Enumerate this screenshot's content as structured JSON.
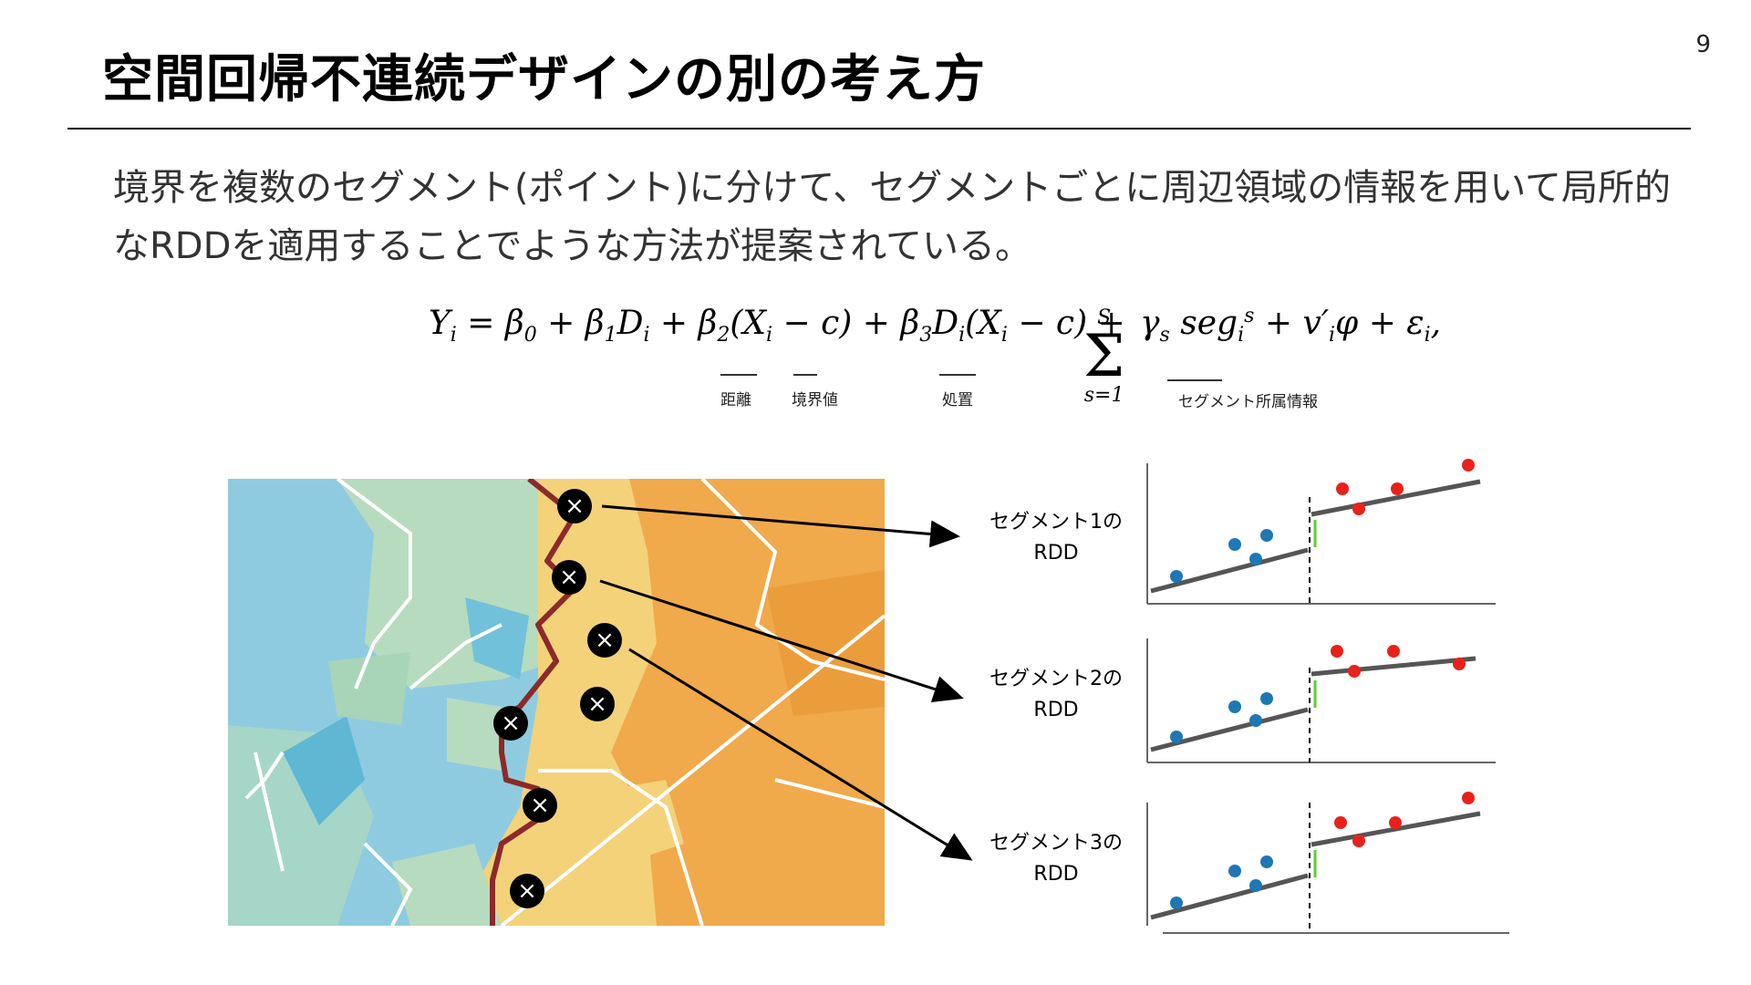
{
  "slide": {
    "title": "空間回帰不連続デザインの別の考え方",
    "page_number": "9",
    "body": "境界を複数のセグメント(ポイント)に分けて、セグメントごとに周辺領域の情報を用いて局所的なRDDを適用することでような方法が提案されている。"
  },
  "equation": {
    "text": "Yi = β0 + β1Di + β2(Xi − c) + β3Di(Xi − c) + Σ γs segis + v′iφ + εi,",
    "sum_upper": "S",
    "sum_lower": "s=1",
    "labels": {
      "distance": "距離",
      "boundary_value": "境界値",
      "treatment": "処置",
      "segment_info": "セグメント所属情報"
    }
  },
  "segments": [
    {
      "label_line1": "セグメント1の",
      "label_line2": "RDD"
    },
    {
      "label_line1": "セグメント2の",
      "label_line2": "RDD"
    },
    {
      "label_line1": "セグメント3の",
      "label_line2": "RDD"
    }
  ],
  "colors": {
    "blue_region": "#8fcbe0",
    "green_region": "#b7dbbf",
    "yellow_region": "#f3d27a",
    "orange_region": "#f0a94b",
    "boundary": "#8b2a2a",
    "control_marker": "#1f77b4",
    "treated_marker": "#e8221b",
    "jump_arrow": "#5fcc3a",
    "fit_line": "#555555"
  }
}
